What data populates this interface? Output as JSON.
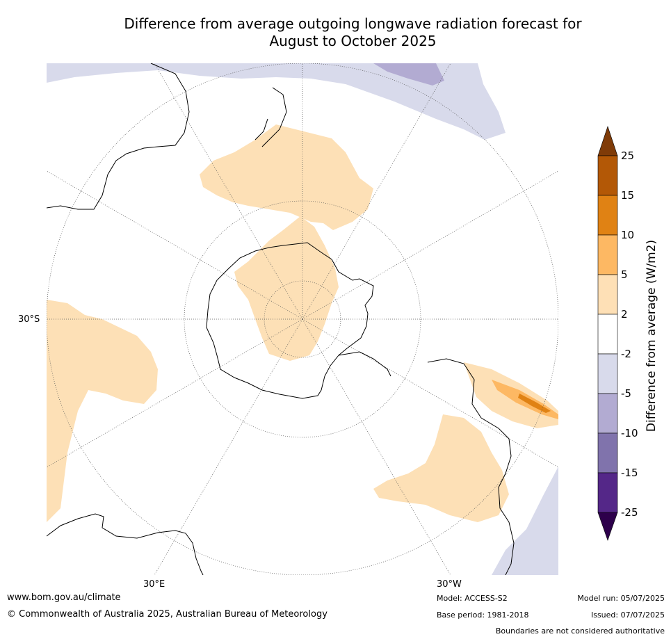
{
  "title": {
    "line1": "Difference from average outgoing longwave radiation forecast for",
    "line2": "August to October 2025"
  },
  "map": {
    "projection": "south polar stereographic",
    "labels": {
      "lat_30s": "30°S",
      "lon_30e": "30°E",
      "lon_30w": "30°W"
    },
    "colors": {
      "ocean": "#ffffff",
      "pos_2_5": "#fde0b6",
      "pos_5_10": "#fdb863",
      "pos_10_15": "#e08214",
      "neg_2_5": "#d8daeb",
      "neg_5_10": "#b2abd2",
      "coast": "#000000",
      "grid": "#555555"
    }
  },
  "colorbar": {
    "title": "Difference from average (W/m2)",
    "ticks": [
      "25",
      "15",
      "10",
      "5",
      "2",
      "-2",
      "-5",
      "-10",
      "-15",
      "-25"
    ],
    "colors": [
      "#7f3b08",
      "#b35806",
      "#e08214",
      "#fdb863",
      "#fee0b6",
      "#ffffff",
      "#d8daeb",
      "#b2abd2",
      "#8073ac",
      "#542788",
      "#2d004b"
    ]
  },
  "footer": {
    "url": "www.bom.gov.au/climate",
    "copyright": "© Commonwealth of Australia 2025, Australian Bureau of Meteorology",
    "model": "Model: ACCESS-S2",
    "base_period": "Base period: 1981-2018",
    "model_run": "Model run: 05/07/2025",
    "issued": "Issued: 07/07/2025",
    "disclaimer": "Boundaries are not considered authoritative"
  }
}
